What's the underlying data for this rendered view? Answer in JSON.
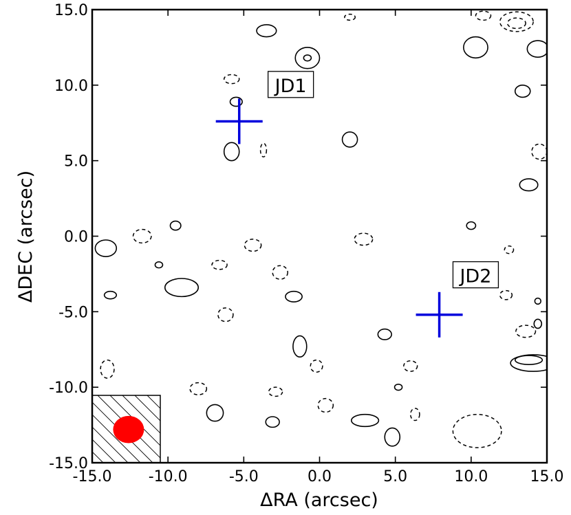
{
  "chart_data": {
    "type": "contour",
    "xlabel": "ΔRA (arcsec)",
    "ylabel": "ΔDEC (arcsec)",
    "xlim": [
      -15,
      15
    ],
    "ylim": [
      -15,
      15
    ],
    "xticks": [
      -15,
      -10,
      -5,
      0,
      5,
      10,
      15
    ],
    "yticks": [
      -15,
      -10,
      -5,
      0,
      5,
      10,
      15
    ],
    "xtick_labels": [
      "-15.0",
      "-10.0",
      "-5.0",
      "0.0",
      "5.0",
      "10.0",
      "15.0"
    ],
    "ytick_labels": [
      "-15.0",
      "-10.0",
      "-5.0",
      "0.0",
      "5.0",
      "10.0",
      "15.0"
    ],
    "sources": [
      {
        "label": "JD1",
        "x": -5.3,
        "y": 7.6,
        "label_x": -1.9,
        "label_y": 10.0,
        "color": "#0000dd"
      },
      {
        "label": "JD2",
        "x": 7.9,
        "y": -5.2,
        "label_x": 10.3,
        "label_y": -2.6,
        "color": "#0000dd"
      }
    ],
    "beam": {
      "x": -12.6,
      "y": -12.8,
      "major_arcsec": 2.0,
      "minor_arcsec": 1.8,
      "color": "#ff0000"
    },
    "contours_positive": [
      {
        "x": -3.5,
        "y": 13.6,
        "rx": 0.65,
        "ry": 0.4
      },
      {
        "x": -0.8,
        "y": 11.8,
        "rx": 0.8,
        "ry": 0.7
      },
      {
        "x": -0.8,
        "y": 11.8,
        "rx": 0.25,
        "ry": 0.2
      },
      {
        "x": 10.3,
        "y": 12.5,
        "rx": 0.8,
        "ry": 0.7
      },
      {
        "x": 14.4,
        "y": 12.4,
        "rx": 0.7,
        "ry": 0.55
      },
      {
        "x": 13.4,
        "y": 9.6,
        "rx": 0.5,
        "ry": 0.4
      },
      {
        "x": -5.5,
        "y": 8.9,
        "rx": 0.4,
        "ry": 0.3
      },
      {
        "x": -5.8,
        "y": 5.6,
        "rx": 0.5,
        "ry": 0.6
      },
      {
        "x": 2.0,
        "y": 6.4,
        "rx": 0.5,
        "ry": 0.5
      },
      {
        "x": 13.8,
        "y": 3.4,
        "rx": 0.6,
        "ry": 0.4
      },
      {
        "x": -9.5,
        "y": 0.7,
        "rx": 0.35,
        "ry": 0.3
      },
      {
        "x": 10.0,
        "y": 0.7,
        "rx": 0.3,
        "ry": 0.25
      },
      {
        "x": -14.1,
        "y": -0.8,
        "rx": 0.7,
        "ry": 0.55
      },
      {
        "x": -10.6,
        "y": -1.9,
        "rx": 0.25,
        "ry": 0.2
      },
      {
        "x": -9.1,
        "y": -3.4,
        "rx": 1.1,
        "ry": 0.6
      },
      {
        "x": -1.7,
        "y": -4.0,
        "rx": 0.55,
        "ry": 0.35
      },
      {
        "x": -13.8,
        "y": -3.9,
        "rx": 0.4,
        "ry": 0.25
      },
      {
        "x": 4.3,
        "y": -6.5,
        "rx": 0.45,
        "ry": 0.35
      },
      {
        "x": -1.3,
        "y": -7.3,
        "rx": 0.45,
        "ry": 0.7
      },
      {
        "x": 14.1,
        "y": -8.4,
        "rx": 1.5,
        "ry": 0.55
      },
      {
        "x": 13.8,
        "y": -8.2,
        "rx": 0.9,
        "ry": 0.3
      },
      {
        "x": -6.9,
        "y": -11.7,
        "rx": 0.55,
        "ry": 0.55
      },
      {
        "x": -3.1,
        "y": -12.3,
        "rx": 0.45,
        "ry": 0.35
      },
      {
        "x": 3.0,
        "y": -12.2,
        "rx": 0.9,
        "ry": 0.4
      },
      {
        "x": 4.8,
        "y": -13.3,
        "rx": 0.5,
        "ry": 0.6
      },
      {
        "x": 14.4,
        "y": -4.3,
        "rx": 0.2,
        "ry": 0.2
      },
      {
        "x": 14.4,
        "y": -5.8,
        "rx": 0.25,
        "ry": 0.3
      },
      {
        "x": 5.2,
        "y": -10.0,
        "rx": 0.25,
        "ry": 0.2
      }
    ],
    "contours_negative": [
      {
        "x": 2.0,
        "y": 14.5,
        "rx": 0.35,
        "ry": 0.2
      },
      {
        "x": 10.8,
        "y": 14.6,
        "rx": 0.5,
        "ry": 0.3
      },
      {
        "x": 13.0,
        "y": 14.2,
        "rx": 1.1,
        "ry": 0.65
      },
      {
        "x": 13.0,
        "y": 14.1,
        "rx": 0.6,
        "ry": 0.35
      },
      {
        "x": -5.8,
        "y": 10.4,
        "rx": 0.5,
        "ry": 0.3
      },
      {
        "x": -3.7,
        "y": 5.7,
        "rx": 0.2,
        "ry": 0.45
      },
      {
        "x": 14.5,
        "y": 5.6,
        "rx": 0.5,
        "ry": 0.5
      },
      {
        "x": -11.7,
        "y": 0.0,
        "rx": 0.6,
        "ry": 0.45
      },
      {
        "x": -4.4,
        "y": -0.6,
        "rx": 0.55,
        "ry": 0.4
      },
      {
        "x": 2.9,
        "y": -0.2,
        "rx": 0.6,
        "ry": 0.4
      },
      {
        "x": -6.6,
        "y": -1.9,
        "rx": 0.5,
        "ry": 0.3
      },
      {
        "x": -2.6,
        "y": -2.4,
        "rx": 0.5,
        "ry": 0.45
      },
      {
        "x": 12.5,
        "y": -0.9,
        "rx": 0.3,
        "ry": 0.25
      },
      {
        "x": 12.3,
        "y": -3.9,
        "rx": 0.4,
        "ry": 0.3
      },
      {
        "x": -6.2,
        "y": -5.2,
        "rx": 0.5,
        "ry": 0.45
      },
      {
        "x": 13.6,
        "y": -6.3,
        "rx": 0.65,
        "ry": 0.4
      },
      {
        "x": -14.0,
        "y": -8.8,
        "rx": 0.45,
        "ry": 0.6
      },
      {
        "x": -0.2,
        "y": -8.6,
        "rx": 0.4,
        "ry": 0.4
      },
      {
        "x": 6.0,
        "y": -8.6,
        "rx": 0.45,
        "ry": 0.35
      },
      {
        "x": -8.0,
        "y": -10.1,
        "rx": 0.55,
        "ry": 0.4
      },
      {
        "x": -2.9,
        "y": -10.3,
        "rx": 0.45,
        "ry": 0.3
      },
      {
        "x": 0.4,
        "y": -11.2,
        "rx": 0.5,
        "ry": 0.45
      },
      {
        "x": 6.3,
        "y": -11.8,
        "rx": 0.3,
        "ry": 0.4
      },
      {
        "x": 10.4,
        "y": -12.9,
        "rx": 1.6,
        "ry": 1.1
      }
    ]
  }
}
